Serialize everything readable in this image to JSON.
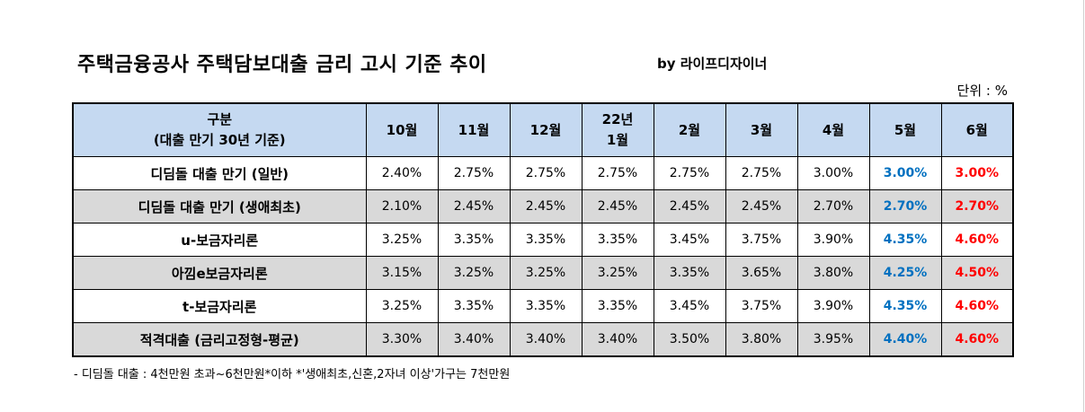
{
  "title": "주택금융공사 주택담보대출 금리 고시 기준 추이",
  "byline": "by 라이프디자이너",
  "unit": "단위 : %",
  "table": {
    "header": {
      "label_line1": "구분",
      "label_line2": "(대출 만기 30년 기준)",
      "months": [
        {
          "line1": "10월",
          "line2": ""
        },
        {
          "line1": "11월",
          "line2": ""
        },
        {
          "line1": "12월",
          "line2": ""
        },
        {
          "line1": "22년",
          "line2": "1월"
        },
        {
          "line1": "2월",
          "line2": ""
        },
        {
          "line1": "3월",
          "line2": ""
        },
        {
          "line1": "4월",
          "line2": ""
        },
        {
          "line1": "5월",
          "line2": ""
        },
        {
          "line1": "6월",
          "line2": ""
        }
      ]
    },
    "rows": [
      {
        "label": "디딤돌 대출 만기 (일반)",
        "values": [
          "2.40%",
          "2.75%",
          "2.75%",
          "2.75%",
          "2.75%",
          "2.75%",
          "3.00%",
          "3.00%",
          "3.00%"
        ]
      },
      {
        "label": "디딤돌 대출 만기 (생애최초)",
        "values": [
          "2.10%",
          "2.45%",
          "2.45%",
          "2.45%",
          "2.45%",
          "2.45%",
          "2.70%",
          "2.70%",
          "2.70%"
        ]
      },
      {
        "label": "u-보금자리론",
        "values": [
          "3.25%",
          "3.35%",
          "3.35%",
          "3.35%",
          "3.45%",
          "3.75%",
          "3.90%",
          "4.35%",
          "4.60%"
        ]
      },
      {
        "label": "아낌e보금자리론",
        "values": [
          "3.15%",
          "3.25%",
          "3.25%",
          "3.25%",
          "3.35%",
          "3.65%",
          "3.80%",
          "4.25%",
          "4.50%"
        ]
      },
      {
        "label": "t-보금자리론",
        "values": [
          "3.25%",
          "3.35%",
          "3.35%",
          "3.35%",
          "3.45%",
          "3.75%",
          "3.90%",
          "4.35%",
          "4.60%"
        ]
      },
      {
        "label": "적격대출 (금리고정형-평균)",
        "values": [
          "3.30%",
          "3.40%",
          "3.40%",
          "3.40%",
          "3.50%",
          "3.80%",
          "3.95%",
          "4.40%",
          "4.60%"
        ]
      }
    ],
    "colors": {
      "header_bg": "#c5d9f1",
      "alt_row_bg": "#d9d9d9",
      "may_text": "#0070c0",
      "june_text": "#ff0000"
    }
  },
  "footnote": "- 디딤돌 대출 : 4천만원 초과~6천만원*이하 *'생애최초,신혼,2자녀 이상'가구는 7천만원"
}
